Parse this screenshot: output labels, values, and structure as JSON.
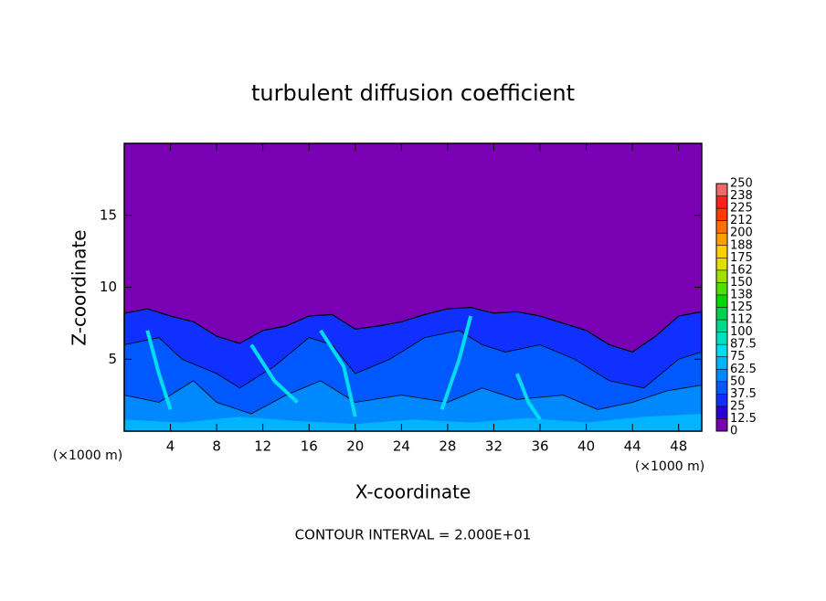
{
  "chart_data": {
    "type": "contour",
    "title": "turbulent diffusion coefficient",
    "xlabel": "X-coordinate",
    "ylabel": "Z-coordinate",
    "x_unit": "(×1000 m)",
    "y_unit": "(×1000 m)",
    "footnote": "CONTOUR INTERVAL = 2.000E+01",
    "xlim": [
      0,
      50
    ],
    "xticks": [
      4,
      8,
      12,
      16,
      20,
      24,
      28,
      32,
      36,
      40,
      44,
      48
    ],
    "ylim": [
      0,
      20
    ],
    "yticks": [
      5,
      10,
      15
    ],
    "colorbar": {
      "ticks": [
        0,
        12.5,
        25,
        37.5,
        50,
        62.5,
        75,
        87.5,
        100,
        112,
        125,
        138,
        150,
        162,
        175,
        188,
        200,
        212,
        225,
        238,
        250
      ],
      "colors": [
        "#7a00b4",
        "#2a00d4",
        "#1030ff",
        "#0058ff",
        "#0088ff",
        "#00b4ff",
        "#00dcf0",
        "#00e0c0",
        "#00d890",
        "#00d050",
        "#00d800",
        "#50e000",
        "#a0e000",
        "#e0e000",
        "#ffd000",
        "#ffa000",
        "#ff7000",
        "#ff3c00",
        "#ff2020",
        "#f06868"
      ]
    }
  }
}
